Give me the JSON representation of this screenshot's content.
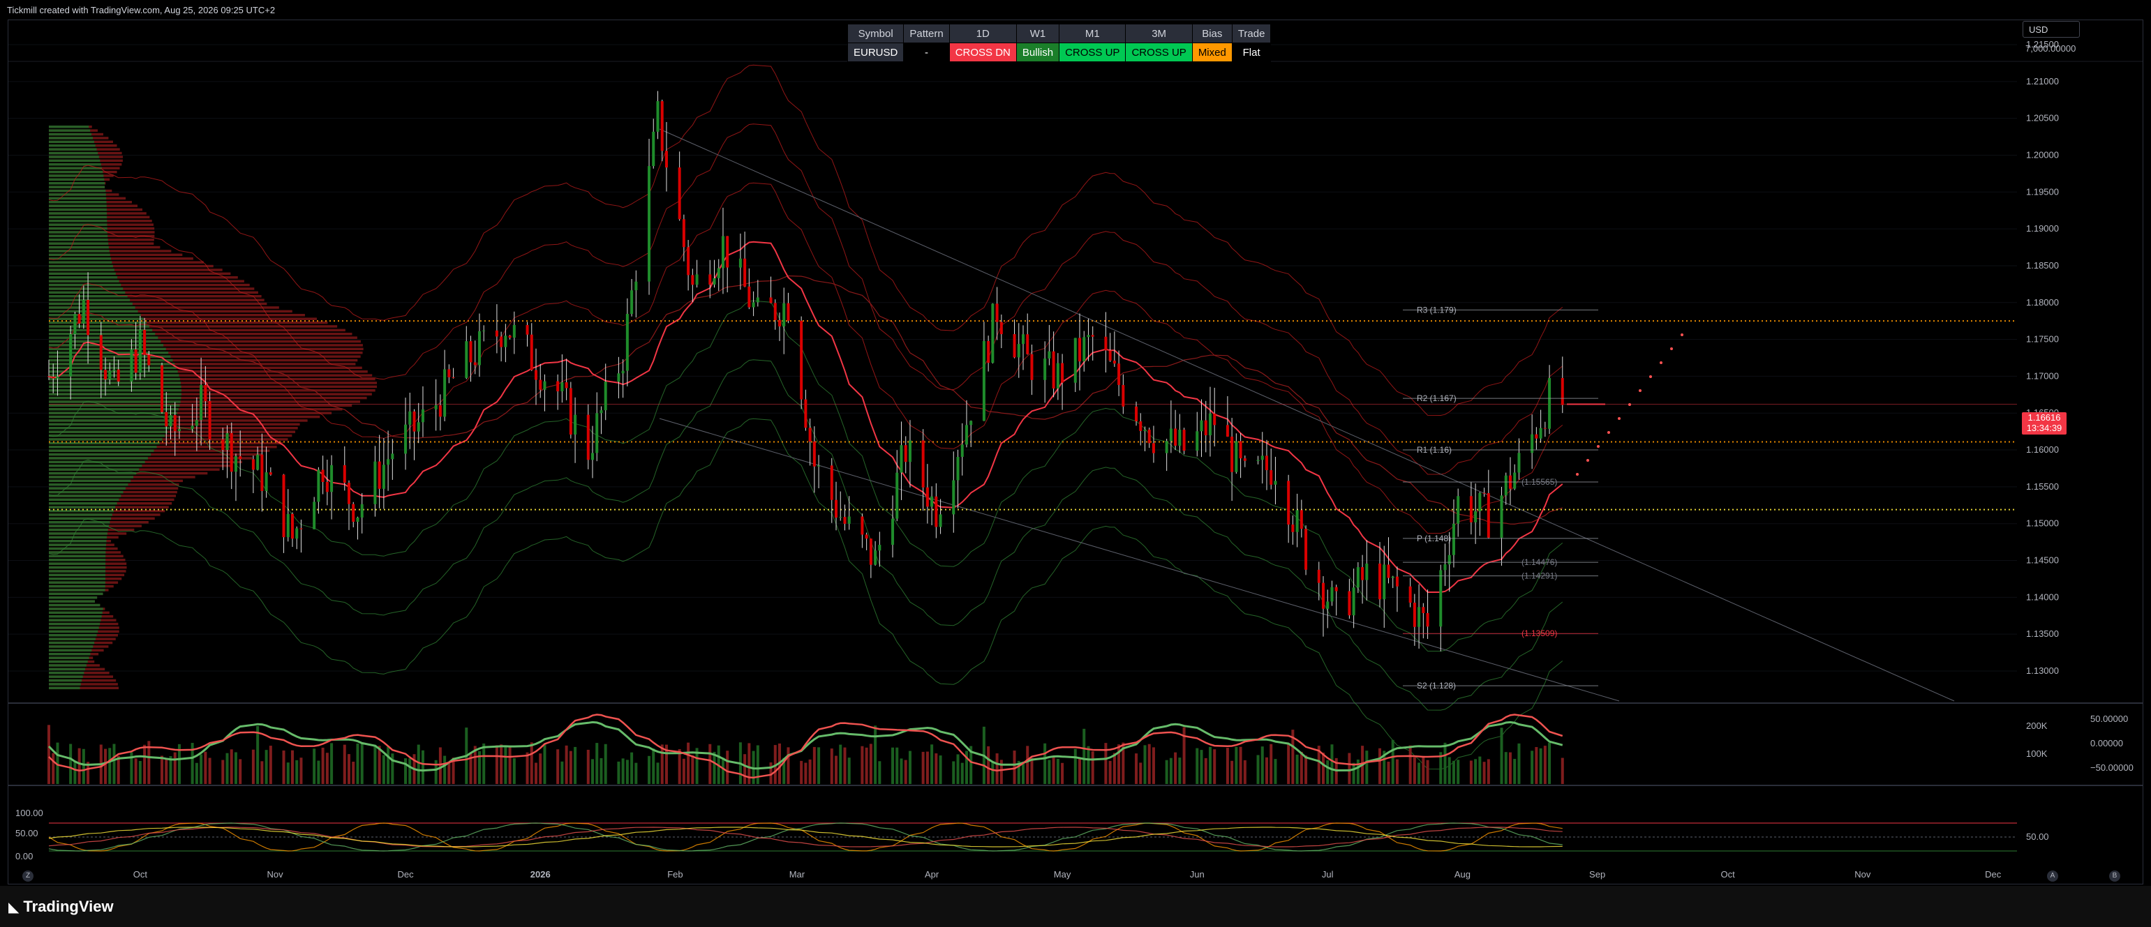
{
  "header": {
    "credit": "Tickmill created with TradingView.com, Aug 25, 2026 09:25 UTC+2"
  },
  "status_table": {
    "headers": [
      "Symbol",
      "Pattern",
      "1D",
      "W1",
      "M1",
      "3M",
      "Bias",
      "Trade"
    ],
    "values": [
      "EURUSD",
      "-",
      "CROSS DN",
      "Bullish",
      "CROSS UP",
      "CROSS UP",
      "Mixed",
      "Flat"
    ],
    "colors": [
      "#2a2e39",
      "#000000",
      "#f23645",
      "#1b7f2a",
      "#00c853",
      "#00c853",
      "#ff9800",
      "#000000"
    ],
    "text_colors": [
      "#ffffff",
      "#ffffff",
      "#ffffff",
      "#ffffff",
      "#000000",
      "#000000",
      "#000000",
      "#ffffff"
    ]
  },
  "right_panel": {
    "currency": "USD",
    "top_value": "7,000.00000",
    "price": "1.16616",
    "countdown": "13:34:39"
  },
  "colors": {
    "up": "#089981",
    "up_candle": "#1f8c2b",
    "down": "#f23645",
    "down_candle": "#d90000",
    "grid": "#131722"
  },
  "brand": {
    "logo_text": "TradingView"
  },
  "buttons": {
    "zoom": "Z",
    "auto": "A",
    "b": "B"
  },
  "chart_data": [
    {
      "type": "candlestick",
      "symbol": "EURUSD",
      "timeframe": "1D",
      "y_ticks": [
        "1.21500",
        "1.21000",
        "1.20500",
        "1.20000",
        "1.19500",
        "1.19000",
        "1.18500",
        "1.18000",
        "1.17500",
        "1.17000",
        "1.16500",
        "1.16000",
        "1.15500",
        "1.15000",
        "1.14500",
        "1.14000",
        "1.13500",
        "1.13000"
      ],
      "y_range": [
        1.125,
        1.218
      ],
      "x_labels": [
        "Oct",
        "Nov",
        "Dec",
        "2026",
        "Feb",
        "Mar",
        "Apr",
        "May",
        "Jun",
        "Jul",
        "Aug",
        "Sep",
        "Oct",
        "Nov",
        "Dec"
      ],
      "anchors": [
        [
          "2025-09-10",
          1.17
        ],
        [
          "2025-09-18",
          1.18
        ],
        [
          "2025-09-25",
          1.168
        ],
        [
          "2025-10-01",
          1.174
        ],
        [
          "2025-10-08",
          1.162
        ],
        [
          "2025-10-15",
          1.166
        ],
        [
          "2025-10-22",
          1.16
        ],
        [
          "2025-10-30",
          1.156
        ],
        [
          "2025-11-05",
          1.148
        ],
        [
          "2025-11-12",
          1.158
        ],
        [
          "2025-11-20",
          1.152
        ],
        [
          "2025-11-28",
          1.16
        ],
        [
          "2025-12-05",
          1.164
        ],
        [
          "2025-12-15",
          1.172
        ],
        [
          "2025-12-24",
          1.177
        ],
        [
          "2026-01-05",
          1.168
        ],
        [
          "2026-01-12",
          1.16
        ],
        [
          "2026-01-20",
          1.173
        ],
        [
          "2026-01-28",
          1.205
        ],
        [
          "2026-02-05",
          1.182
        ],
        [
          "2026-02-12",
          1.188
        ],
        [
          "2026-02-20",
          1.178
        ],
        [
          "2026-02-27",
          1.18
        ],
        [
          "2026-03-05",
          1.158
        ],
        [
          "2026-03-12",
          1.15
        ],
        [
          "2026-03-19",
          1.145
        ],
        [
          "2026-03-26",
          1.16
        ],
        [
          "2026-04-02",
          1.152
        ],
        [
          "2026-04-09",
          1.164
        ],
        [
          "2026-04-16",
          1.179
        ],
        [
          "2026-04-23",
          1.172
        ],
        [
          "2026-04-30",
          1.17
        ],
        [
          "2026-05-08",
          1.175
        ],
        [
          "2026-05-15",
          1.168
        ],
        [
          "2026-05-22",
          1.162
        ],
        [
          "2026-05-29",
          1.16
        ],
        [
          "2026-06-05",
          1.164
        ],
        [
          "2026-06-12",
          1.156
        ],
        [
          "2026-06-19",
          1.158
        ],
        [
          "2026-06-26",
          1.146
        ],
        [
          "2026-07-03",
          1.138
        ],
        [
          "2026-07-10",
          1.143
        ],
        [
          "2026-07-17",
          1.141
        ],
        [
          "2026-07-24",
          1.136
        ],
        [
          "2026-07-31",
          1.153
        ],
        [
          "2026-08-07",
          1.151
        ],
        [
          "2026-08-14",
          1.158
        ],
        [
          "2026-08-21",
          1.167
        ],
        [
          "2026-08-25",
          1.166
        ]
      ],
      "horizontal_levels": [
        {
          "value": 1.1775,
          "color": "#ff9800",
          "style": "dotted"
        },
        {
          "value": 1.1611,
          "color": "#ff9800",
          "style": "dotted"
        },
        {
          "value": 1.1519,
          "color": "#ffeb3b",
          "style": "dotted"
        },
        {
          "value": 1.1662,
          "color": "#f23645",
          "style": "solid-thin"
        }
      ],
      "pivots": [
        {
          "label": "R3 (1.179)",
          "value": 1.179,
          "color": "#b2b5be"
        },
        {
          "label": "R2 (1.167)",
          "value": 1.167,
          "color": "#b2b5be"
        },
        {
          "label": "R1 (1.16)",
          "value": 1.16,
          "color": "#b2b5be"
        },
        {
          "label": "P (1.148)",
          "value": 1.148,
          "color": "#b2b5be"
        },
        {
          "label": "S2 (1.128)",
          "value": 1.128,
          "color": "#b2b5be"
        },
        {
          "label": "(1.14476)",
          "value": 1.14476,
          "color": "#787b86"
        },
        {
          "label": "(1.14291)",
          "value": 1.14291,
          "color": "#787b86"
        },
        {
          "label": "(1.13509)",
          "value": 1.13509,
          "color": "#f23645"
        },
        {
          "label": "(1.15565)",
          "value": 1.15565,
          "color": "#787b86"
        }
      ]
    },
    {
      "type": "volume-oscillator",
      "y_ticks": [
        "50.00000",
        "0.00000",
        "−50.00000"
      ],
      "volume_ticks": [
        "200K",
        "100K"
      ]
    },
    {
      "type": "stochastic-lines",
      "left_ticks": [
        "100.00",
        "50.00",
        "0.00"
      ],
      "right_ticks": [
        "50.00"
      ]
    }
  ]
}
